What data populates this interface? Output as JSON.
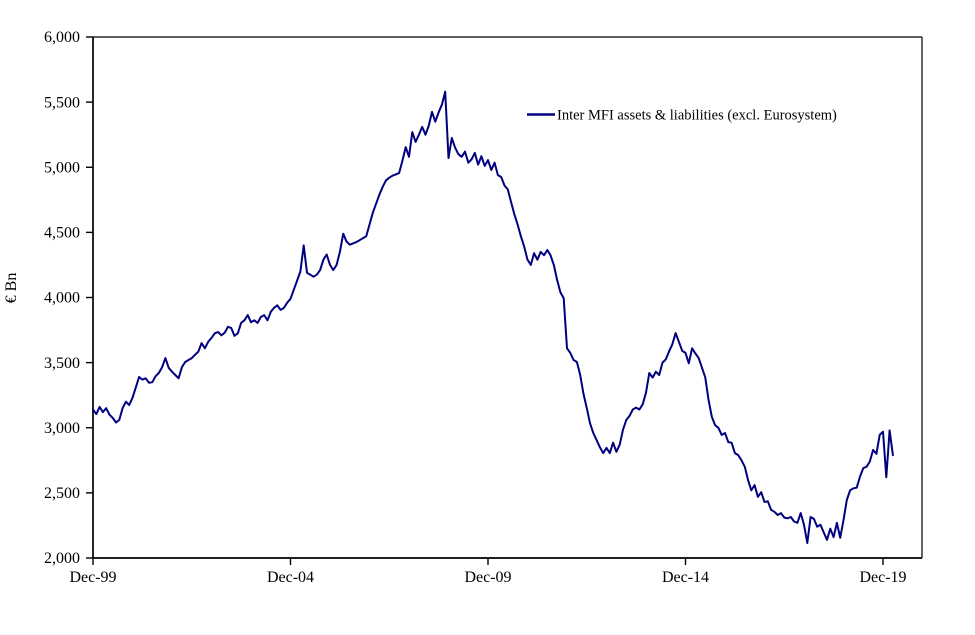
{
  "chart": {
    "background": "#ffffff",
    "axis_color": "#000000",
    "text_color": "#000000"
  },
  "chart_data": {
    "type": "line",
    "title": "",
    "xlabel": "",
    "ylabel": "€ Bn",
    "ylim": [
      2000,
      6000
    ],
    "y_tick_step": 500,
    "y_tick_labels": [
      "2,000",
      "2,500",
      "3,000",
      "3,500",
      "4,000",
      "4,500",
      "5,000",
      "5,500",
      "6,000"
    ],
    "x_tick_labels": [
      "Dec-99",
      "Dec-04",
      "Dec-09",
      "Dec-14",
      "Dec-19"
    ],
    "x_tick_month_indices": [
      0,
      60,
      120,
      180,
      240
    ],
    "grid": false,
    "legend_position": "inside-top-right",
    "series": [
      {
        "name": "Inter MFI assets & liabilities (excl. Eurosystem)",
        "color": "#000080",
        "frequency": "monthly",
        "x_start": "Dec-99",
        "x_end": "Mar-20",
        "values": [
          3140,
          3105,
          3160,
          3120,
          3150,
          3100,
          3075,
          3040,
          3060,
          3150,
          3200,
          3175,
          3230,
          3310,
          3390,
          3370,
          3380,
          3345,
          3350,
          3395,
          3420,
          3465,
          3535,
          3460,
          3430,
          3405,
          3380,
          3465,
          3505,
          3520,
          3535,
          3560,
          3585,
          3650,
          3610,
          3660,
          3690,
          3725,
          3735,
          3710,
          3730,
          3775,
          3765,
          3705,
          3725,
          3805,
          3825,
          3865,
          3810,
          3825,
          3805,
          3850,
          3865,
          3825,
          3890,
          3920,
          3940,
          3905,
          3920,
          3960,
          3990,
          4060,
          4130,
          4200,
          4400,
          4190,
          4175,
          4160,
          4175,
          4210,
          4290,
          4330,
          4250,
          4210,
          4250,
          4350,
          4490,
          4430,
          4405,
          4415,
          4425,
          4440,
          4455,
          4470,
          4560,
          4650,
          4720,
          4790,
          4850,
          4900,
          4920,
          4935,
          4945,
          4955,
          5050,
          5155,
          5080,
          5270,
          5195,
          5250,
          5310,
          5250,
          5320,
          5425,
          5350,
          5420,
          5480,
          5580,
          5070,
          5225,
          5150,
          5100,
          5080,
          5120,
          5035,
          5060,
          5110,
          5020,
          5085,
          5010,
          5055,
          4980,
          5035,
          4940,
          4925,
          4860,
          4830,
          4735,
          4640,
          4560,
          4470,
          4390,
          4290,
          4250,
          4340,
          4290,
          4350,
          4325,
          4365,
          4325,
          4250,
          4135,
          4040,
          3995,
          3610,
          3575,
          3520,
          3505,
          3405,
          3260,
          3150,
          3035,
          2960,
          2905,
          2850,
          2805,
          2845,
          2805,
          2885,
          2815,
          2870,
          2985,
          3060,
          3090,
          3140,
          3155,
          3140,
          3180,
          3270,
          3420,
          3385,
          3430,
          3405,
          3500,
          3525,
          3585,
          3640,
          3727,
          3660,
          3590,
          3575,
          3495,
          3610,
          3570,
          3535,
          3460,
          3385,
          3215,
          3085,
          3020,
          3000,
          2945,
          2960,
          2890,
          2885,
          2805,
          2790,
          2750,
          2700,
          2600,
          2520,
          2560,
          2470,
          2505,
          2430,
          2435,
          2370,
          2355,
          2330,
          2345,
          2310,
          2305,
          2315,
          2280,
          2270,
          2345,
          2255,
          2115,
          2315,
          2300,
          2240,
          2255,
          2195,
          2140,
          2225,
          2160,
          2270,
          2155,
          2290,
          2445,
          2520,
          2535,
          2540,
          2625,
          2690,
          2700,
          2740,
          2830,
          2800,
          2945,
          2970,
          2620,
          2980,
          2790
        ]
      }
    ]
  }
}
